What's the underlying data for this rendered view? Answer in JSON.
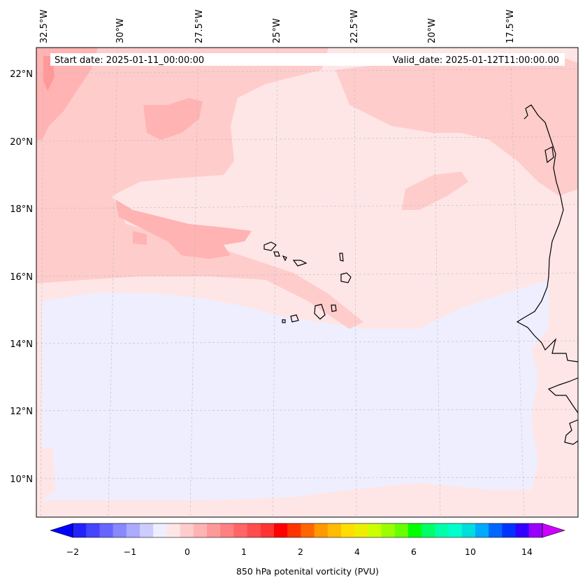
{
  "header": {
    "start_date": "Start date: 2025-01-11_00:00:00",
    "valid_date": "Valid_date: 2025-01-12T11:00:00.00"
  },
  "longitude_labels": [
    "32.5°W",
    "30°W",
    "27.5°W",
    "25°W",
    "22.5°W",
    "20°W",
    "17.5°W"
  ],
  "latitude_labels": [
    "22°N",
    "20°N",
    "18°N",
    "16°N",
    "14°N",
    "12°N",
    "10°N"
  ],
  "colorbar": {
    "title": "850 hPa potenital vorticity (PVU)",
    "tick_labels": [
      "−2",
      "−1",
      "0",
      "1",
      "2",
      "4",
      "6",
      "10",
      "14"
    ],
    "colors": [
      "#0000ff",
      "#2222ff",
      "#4444ff",
      "#6666ff",
      "#8888ff",
      "#aaaaff",
      "#ccccff",
      "#eeeeff",
      "#ffe6e6",
      "#ffcccc",
      "#ffb3b3",
      "#ff9999",
      "#ff8080",
      "#ff6666",
      "#ff4d4d",
      "#ff3333",
      "#ff0000",
      "#ff3300",
      "#ff6600",
      "#ff9900",
      "#ffbb00",
      "#ffdd00",
      "#eeee00",
      "#ccff00",
      "#99ff00",
      "#66ff00",
      "#00ff00",
      "#00ff66",
      "#00ffaa",
      "#00ffcc",
      "#00dddd",
      "#00aaff",
      "#0066ff",
      "#0033ff",
      "#3300ff",
      "#9900ff",
      "#cc00ff"
    ]
  },
  "map_colors": {
    "background_pink": "#ffe6e6",
    "light_pink": "#ffcccc",
    "medium_pink": "#ffb3b3",
    "negative_blue": "#eeeeff",
    "coastline": "#000000"
  }
}
